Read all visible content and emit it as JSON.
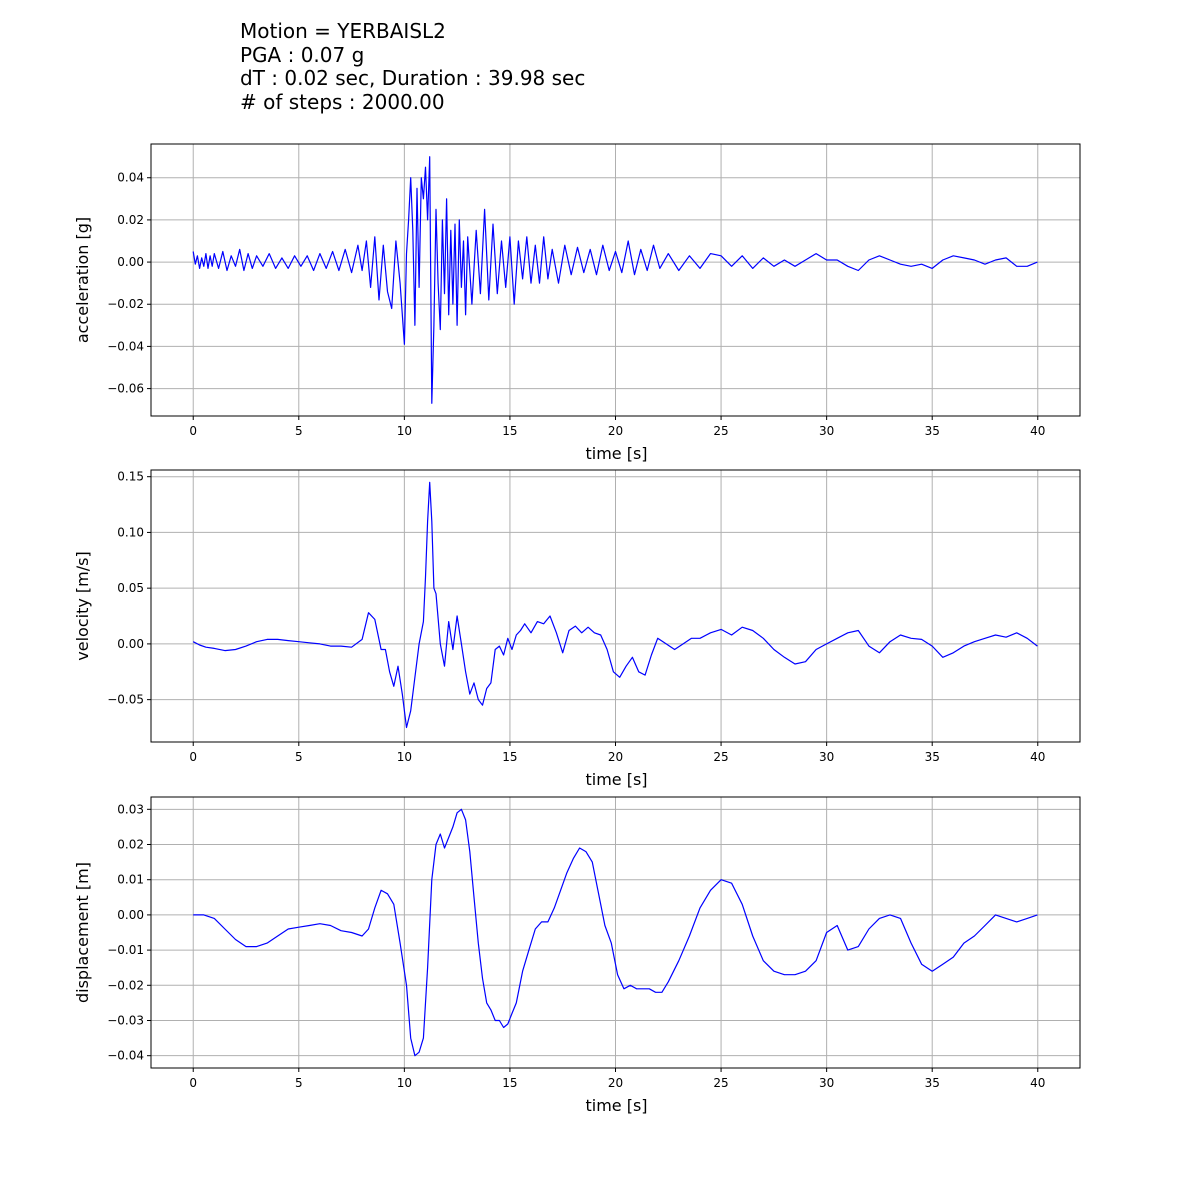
{
  "header": {
    "line1": "Motion = YERBAISL2",
    "line2": "PGA : 0.07 g",
    "line3": "dT : 0.02 sec, Duration : 39.98 sec",
    "line4": "# of steps : 2000.00"
  },
  "chart_data": [
    {
      "type": "line",
      "title": "",
      "xlabel": "time [s]",
      "ylabel": "acceleration [g]",
      "xlim": [
        -2,
        42
      ],
      "ylim": [
        -0.073,
        0.056
      ],
      "xticks": [
        0,
        5,
        10,
        15,
        20,
        25,
        30,
        35,
        40
      ],
      "yticks": [
        -0.06,
        -0.04,
        -0.02,
        0.0,
        0.02,
        0.04
      ],
      "ytick_labels": [
        "−0.06",
        "−0.04",
        "−0.02",
        "0.00",
        "0.02",
        "0.04"
      ],
      "grid": true,
      "color": "#0000ff",
      "series": [
        {
          "x": [
            0,
            0.1,
            0.2,
            0.3,
            0.4,
            0.5,
            0.6,
            0.7,
            0.8,
            0.9,
            1.0,
            1.2,
            1.4,
            1.6,
            1.8,
            2.0,
            2.2,
            2.4,
            2.6,
            2.8,
            3.0,
            3.3,
            3.6,
            3.9,
            4.2,
            4.5,
            4.8,
            5.1,
            5.4,
            5.7,
            6.0,
            6.3,
            6.6,
            6.9,
            7.2,
            7.5,
            7.8,
            8.0,
            8.2,
            8.4,
            8.6,
            8.8,
            9.0,
            9.2,
            9.4,
            9.6,
            9.8,
            10.0,
            10.1,
            10.2,
            10.3,
            10.4,
            10.5,
            10.6,
            10.7,
            10.8,
            10.9,
            11.0,
            11.1,
            11.2,
            11.3,
            11.4,
            11.5,
            11.6,
            11.7,
            11.8,
            11.9,
            12.0,
            12.1,
            12.2,
            12.3,
            12.4,
            12.5,
            12.6,
            12.7,
            12.8,
            12.9,
            13.0,
            13.2,
            13.4,
            13.6,
            13.8,
            14.0,
            14.2,
            14.4,
            14.6,
            14.8,
            15.0,
            15.2,
            15.4,
            15.6,
            15.8,
            16.0,
            16.2,
            16.4,
            16.6,
            16.8,
            17.0,
            17.3,
            17.6,
            17.9,
            18.2,
            18.5,
            18.8,
            19.1,
            19.4,
            19.7,
            20.0,
            20.3,
            20.6,
            20.9,
            21.2,
            21.5,
            21.8,
            22.1,
            22.5,
            23.0,
            23.5,
            24.0,
            24.5,
            25.0,
            25.5,
            26.0,
            26.5,
            27.0,
            27.5,
            28.0,
            28.5,
            29.0,
            29.5,
            30.0,
            30.5,
            31.0,
            31.5,
            32.0,
            32.5,
            33.0,
            33.5,
            34.0,
            34.5,
            35.0,
            35.5,
            36.0,
            36.5,
            37.0,
            37.5,
            38.0,
            38.5,
            39.0,
            39.5,
            39.98
          ],
          "y": [
            0.005,
            -0.001,
            0.003,
            -0.003,
            0.002,
            -0.002,
            0.004,
            -0.003,
            0.003,
            -0.002,
            0.004,
            -0.003,
            0.005,
            -0.004,
            0.003,
            -0.002,
            0.006,
            -0.004,
            0.004,
            -0.003,
            0.003,
            -0.002,
            0.004,
            -0.003,
            0.002,
            -0.003,
            0.003,
            -0.002,
            0.003,
            -0.004,
            0.004,
            -0.003,
            0.005,
            -0.004,
            0.006,
            -0.005,
            0.008,
            -0.004,
            0.01,
            -0.012,
            0.012,
            -0.018,
            0.008,
            -0.014,
            -0.022,
            0.01,
            -0.01,
            -0.039,
            0.004,
            0.02,
            0.04,
            0.015,
            -0.03,
            0.035,
            -0.012,
            0.04,
            0.03,
            0.045,
            0.02,
            0.05,
            -0.067,
            -0.03,
            0.025,
            -0.01,
            -0.032,
            0.02,
            -0.015,
            0.03,
            -0.025,
            0.015,
            -0.02,
            0.018,
            -0.03,
            0.02,
            -0.012,
            0.01,
            -0.025,
            0.012,
            -0.02,
            0.015,
            -0.015,
            0.025,
            -0.018,
            0.018,
            -0.015,
            0.01,
            -0.012,
            0.012,
            -0.02,
            0.01,
            -0.008,
            0.012,
            -0.01,
            0.008,
            -0.01,
            0.012,
            -0.008,
            0.006,
            -0.01,
            0.008,
            -0.006,
            0.007,
            -0.005,
            0.006,
            -0.006,
            0.008,
            -0.004,
            0.005,
            -0.005,
            0.01,
            -0.006,
            0.006,
            -0.004,
            0.008,
            -0.003,
            0.004,
            -0.004,
            0.003,
            -0.003,
            0.004,
            0.003,
            -0.002,
            0.003,
            -0.003,
            0.002,
            -0.002,
            0.001,
            -0.002,
            0.001,
            0.004,
            0.001,
            0.001,
            -0.002,
            -0.004,
            0.001,
            0.003,
            0.001,
            -0.001,
            -0.002,
            -0.001,
            -0.003,
            0.001,
            0.003,
            0.002,
            0.001,
            -0.001,
            0.001,
            0.002,
            -0.002,
            -0.002,
            0.0
          ]
        }
      ]
    },
    {
      "type": "line",
      "title": "",
      "xlabel": "time [s]",
      "ylabel": "velocity [m/s]",
      "xlim": [
        -2,
        42
      ],
      "ylim": [
        -0.088,
        0.156
      ],
      "xticks": [
        0,
        5,
        10,
        15,
        20,
        25,
        30,
        35,
        40
      ],
      "yticks": [
        -0.05,
        0.0,
        0.05,
        0.1,
        0.15
      ],
      "ytick_labels": [
        "−0.05",
        "0.00",
        "0.05",
        "0.10",
        "0.15"
      ],
      "grid": true,
      "color": "#0000ff",
      "series": [
        {
          "x": [
            0,
            0.3,
            0.6,
            1.0,
            1.5,
            2.0,
            2.5,
            3.0,
            3.5,
            4.0,
            4.5,
            5.0,
            5.5,
            6.0,
            6.5,
            7.0,
            7.5,
            8.0,
            8.3,
            8.6,
            8.9,
            9.1,
            9.3,
            9.5,
            9.7,
            9.9,
            10.1,
            10.3,
            10.5,
            10.7,
            10.9,
            11.0,
            11.1,
            11.2,
            11.3,
            11.4,
            11.5,
            11.7,
            11.9,
            12.1,
            12.3,
            12.5,
            12.7,
            12.9,
            13.1,
            13.3,
            13.5,
            13.7,
            13.9,
            14.1,
            14.3,
            14.5,
            14.7,
            14.9,
            15.1,
            15.3,
            15.5,
            15.7,
            16.0,
            16.3,
            16.6,
            16.9,
            17.2,
            17.5,
            17.8,
            18.1,
            18.4,
            18.7,
            19.0,
            19.3,
            19.6,
            19.9,
            20.2,
            20.5,
            20.8,
            21.1,
            21.4,
            21.7,
            22.0,
            22.4,
            22.8,
            23.2,
            23.6,
            24.0,
            24.5,
            25.0,
            25.5,
            26.0,
            26.5,
            27.0,
            27.5,
            28.0,
            28.5,
            29.0,
            29.5,
            30.0,
            30.5,
            31.0,
            31.5,
            32.0,
            32.5,
            33.0,
            33.5,
            34.0,
            34.5,
            35.0,
            35.5,
            36.0,
            36.5,
            37.0,
            37.5,
            38.0,
            38.5,
            39.0,
            39.5,
            39.98
          ],
          "y": [
            0.002,
            -0.001,
            -0.003,
            -0.004,
            -0.006,
            -0.005,
            -0.002,
            0.002,
            0.004,
            0.004,
            0.003,
            0.002,
            0.001,
            0.0,
            -0.002,
            -0.002,
            -0.003,
            0.004,
            0.028,
            0.022,
            -0.005,
            -0.005,
            -0.025,
            -0.038,
            -0.02,
            -0.045,
            -0.075,
            -0.06,
            -0.03,
            0.0,
            0.02,
            0.06,
            0.11,
            0.145,
            0.11,
            0.05,
            0.045,
            0.0,
            -0.02,
            0.02,
            -0.005,
            0.025,
            0.0,
            -0.025,
            -0.045,
            -0.035,
            -0.05,
            -0.055,
            -0.04,
            -0.035,
            -0.005,
            -0.002,
            -0.01,
            0.005,
            -0.005,
            0.008,
            0.012,
            0.018,
            0.01,
            0.02,
            0.018,
            0.025,
            0.01,
            -0.008,
            0.012,
            0.016,
            0.01,
            0.015,
            0.01,
            0.008,
            -0.005,
            -0.025,
            -0.03,
            -0.02,
            -0.012,
            -0.025,
            -0.028,
            -0.01,
            0.005,
            0.0,
            -0.005,
            0.0,
            0.005,
            0.005,
            0.01,
            0.013,
            0.008,
            0.015,
            0.012,
            0.005,
            -0.005,
            -0.012,
            -0.018,
            -0.016,
            -0.005,
            0.0,
            0.005,
            0.01,
            0.012,
            -0.002,
            -0.008,
            0.002,
            0.008,
            0.005,
            0.004,
            -0.002,
            -0.012,
            -0.008,
            -0.002,
            0.002,
            0.005,
            0.008,
            0.006,
            0.01,
            0.005,
            -0.002
          ]
        }
      ]
    },
    {
      "type": "line",
      "title": "",
      "xlabel": "time [s]",
      "ylabel": "displacement [m]",
      "xlim": [
        -2,
        42
      ],
      "ylim": [
        -0.0435,
        0.0335
      ],
      "xticks": [
        0,
        5,
        10,
        15,
        20,
        25,
        30,
        35,
        40
      ],
      "yticks": [
        -0.04,
        -0.03,
        -0.02,
        -0.01,
        0.0,
        0.01,
        0.02,
        0.03
      ],
      "ytick_labels": [
        "−0.04",
        "−0.03",
        "−0.02",
        "−0.01",
        "0.00",
        "0.01",
        "0.02",
        "0.03"
      ],
      "grid": true,
      "color": "#0000ff",
      "series": [
        {
          "x": [
            0,
            0.5,
            1.0,
            1.5,
            2.0,
            2.5,
            3.0,
            3.5,
            4.0,
            4.5,
            5.0,
            5.5,
            6.0,
            6.5,
            7.0,
            7.5,
            8.0,
            8.3,
            8.6,
            8.9,
            9.2,
            9.5,
            9.8,
            10.1,
            10.3,
            10.5,
            10.7,
            10.9,
            11.1,
            11.3,
            11.5,
            11.7,
            11.9,
            12.1,
            12.3,
            12.5,
            12.7,
            12.9,
            13.1,
            13.3,
            13.5,
            13.7,
            13.9,
            14.1,
            14.3,
            14.5,
            14.7,
            14.9,
            15.1,
            15.3,
            15.6,
            15.9,
            16.2,
            16.5,
            16.8,
            17.1,
            17.4,
            17.7,
            18.0,
            18.3,
            18.6,
            18.9,
            19.2,
            19.5,
            19.8,
            20.1,
            20.4,
            20.7,
            21.0,
            21.3,
            21.6,
            21.9,
            22.2,
            22.5,
            23.0,
            23.5,
            24.0,
            24.5,
            25.0,
            25.5,
            26.0,
            26.5,
            27.0,
            27.5,
            28.0,
            28.5,
            29.0,
            29.5,
            30.0,
            30.5,
            31.0,
            31.5,
            32.0,
            32.5,
            33.0,
            33.5,
            34.0,
            34.5,
            35.0,
            35.5,
            36.0,
            36.5,
            37.0,
            37.5,
            38.0,
            38.5,
            39.0,
            39.5,
            39.98
          ],
          "y": [
            0.0,
            0.0,
            -0.001,
            -0.004,
            -0.007,
            -0.009,
            -0.009,
            -0.008,
            -0.006,
            -0.004,
            -0.0035,
            -0.003,
            -0.0025,
            -0.003,
            -0.0045,
            -0.005,
            -0.006,
            -0.004,
            0.002,
            0.007,
            0.006,
            0.003,
            -0.008,
            -0.02,
            -0.035,
            -0.04,
            -0.039,
            -0.035,
            -0.015,
            0.01,
            0.02,
            0.023,
            0.019,
            0.022,
            0.025,
            0.029,
            0.03,
            0.027,
            0.018,
            0.005,
            -0.008,
            -0.018,
            -0.025,
            -0.027,
            -0.03,
            -0.03,
            -0.032,
            -0.031,
            -0.028,
            -0.025,
            -0.016,
            -0.01,
            -0.004,
            -0.002,
            -0.002,
            0.002,
            0.007,
            0.012,
            0.016,
            0.019,
            0.018,
            0.015,
            0.006,
            -0.003,
            -0.008,
            -0.017,
            -0.021,
            -0.02,
            -0.021,
            -0.021,
            -0.021,
            -0.022,
            -0.022,
            -0.019,
            -0.013,
            -0.006,
            0.002,
            0.007,
            0.01,
            0.009,
            0.003,
            -0.006,
            -0.013,
            -0.016,
            -0.017,
            -0.017,
            -0.016,
            -0.013,
            -0.005,
            -0.003,
            -0.01,
            -0.009,
            -0.004,
            -0.001,
            0.0,
            -0.001,
            -0.008,
            -0.014,
            -0.016,
            -0.014,
            -0.012,
            -0.008,
            -0.006,
            -0.003,
            0.0,
            -0.001,
            -0.002,
            -0.001,
            0.0
          ]
        }
      ]
    }
  ]
}
